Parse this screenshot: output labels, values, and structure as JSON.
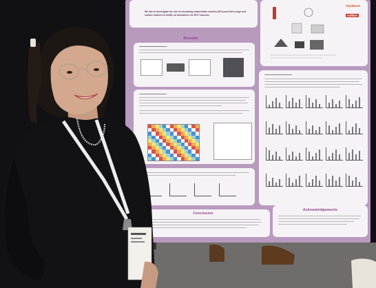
{
  "poster": {
    "intro_text": "We aim to investigate the role of circulating extracellular vesicles (EVs) and their cargo and surface markers in DoHD, as biomarkers for ECP outcome.",
    "results_heading": "Results",
    "conclusion_heading": "Conclusion",
    "acknowledgements_heading": "Acknowledgements",
    "logos": [
      "TwinBase",
      "exRNA"
    ]
  },
  "colors": {
    "poster_background": "#b99abf",
    "panel": "#f6f3f6",
    "heading": "#8a3e86",
    "sweater": "#121114",
    "lanyard": "#ececec"
  },
  "icons": [
    "vial-icon",
    "bench-instrument-icon"
  ]
}
